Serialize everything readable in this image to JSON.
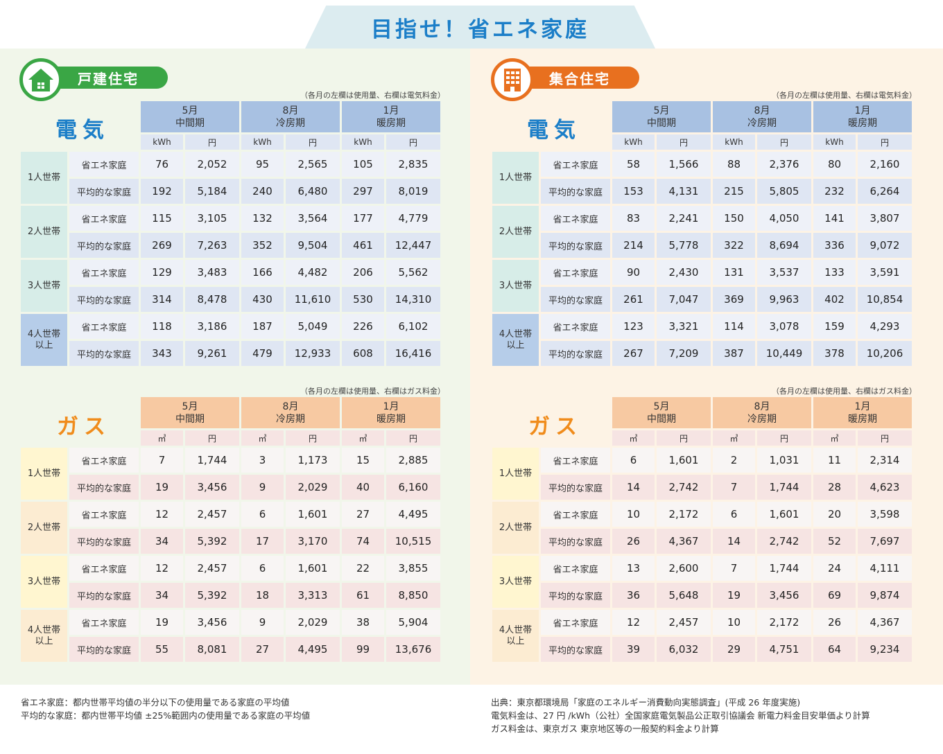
{
  "title": "目指せ！省エネ家庭",
  "colors": {
    "elec_header": "#a8c1e2",
    "elec_sub": "#dfe6f3",
    "gas_header": "#f7c9a2",
    "gas_sub": "#f6e4e3",
    "green": "#3aa645",
    "orange": "#e8701f",
    "blue_text": "#1b7ec8",
    "gas_text": "#f08c1c"
  },
  "left": {
    "title": "戸建住宅",
    "icon": "house-icon",
    "electric": {
      "label": "電気",
      "note": "（各月の左欄は使用量、右欄は電気料金）",
      "months": [
        {
          "month": "5月",
          "season": "中間期"
        },
        {
          "month": "8月",
          "season": "冷房期"
        },
        {
          "month": "1月",
          "season": "暖房期"
        }
      ],
      "units": [
        "kWh",
        "円",
        "kWh",
        "円",
        "kWh",
        "円"
      ],
      "groups": [
        {
          "label": "1人世帯",
          "rows": [
            {
              "label": "省エネ家庭",
              "values": [
                "76",
                "2,052",
                "95",
                "2,565",
                "105",
                "2,835"
              ]
            },
            {
              "label": "平均的な家庭",
              "values": [
                "192",
                "5,184",
                "240",
                "6,480",
                "297",
                "8,019"
              ]
            }
          ]
        },
        {
          "label": "2人世帯",
          "rows": [
            {
              "label": "省エネ家庭",
              "values": [
                "115",
                "3,105",
                "132",
                "3,564",
                "177",
                "4,779"
              ]
            },
            {
              "label": "平均的な家庭",
              "values": [
                "269",
                "7,263",
                "352",
                "9,504",
                "461",
                "12,447"
              ]
            }
          ]
        },
        {
          "label": "3人世帯",
          "rows": [
            {
              "label": "省エネ家庭",
              "values": [
                "129",
                "3,483",
                "166",
                "4,482",
                "206",
                "5,562"
              ]
            },
            {
              "label": "平均的な家庭",
              "values": [
                "314",
                "8,478",
                "430",
                "11,610",
                "530",
                "14,310"
              ]
            }
          ]
        },
        {
          "label": "4人世帯\n以上",
          "rows": [
            {
              "label": "省エネ家庭",
              "values": [
                "118",
                "3,186",
                "187",
                "5,049",
                "226",
                "6,102"
              ]
            },
            {
              "label": "平均的な家庭",
              "values": [
                "343",
                "9,261",
                "479",
                "12,933",
                "608",
                "16,416"
              ]
            }
          ]
        }
      ]
    },
    "gas": {
      "label": "ガス",
      "note": "（各月の左欄は使用量、右欄はガス料金）",
      "months": [
        {
          "month": "5月",
          "season": "中間期"
        },
        {
          "month": "8月",
          "season": "冷房期"
        },
        {
          "month": "1月",
          "season": "暖房期"
        }
      ],
      "units": [
        "㎥",
        "円",
        "㎥",
        "円",
        "㎥",
        "円"
      ],
      "groups": [
        {
          "label": "1人世帯",
          "rows": [
            {
              "label": "省エネ家庭",
              "values": [
                "7",
                "1,744",
                "3",
                "1,173",
                "15",
                "2,885"
              ]
            },
            {
              "label": "平均的な家庭",
              "values": [
                "19",
                "3,456",
                "9",
                "2,029",
                "40",
                "6,160"
              ]
            }
          ]
        },
        {
          "label": "2人世帯",
          "rows": [
            {
              "label": "省エネ家庭",
              "values": [
                "12",
                "2,457",
                "6",
                "1,601",
                "27",
                "4,495"
              ]
            },
            {
              "label": "平均的な家庭",
              "values": [
                "34",
                "5,392",
                "17",
                "3,170",
                "74",
                "10,515"
              ]
            }
          ]
        },
        {
          "label": "3人世帯",
          "rows": [
            {
              "label": "省エネ家庭",
              "values": [
                "12",
                "2,457",
                "6",
                "1,601",
                "22",
                "3,855"
              ]
            },
            {
              "label": "平均的な家庭",
              "values": [
                "34",
                "5,392",
                "18",
                "3,313",
                "61",
                "8,850"
              ]
            }
          ]
        },
        {
          "label": "4人世帯\n以上",
          "rows": [
            {
              "label": "省エネ家庭",
              "values": [
                "19",
                "3,456",
                "9",
                "2,029",
                "38",
                "5,904"
              ]
            },
            {
              "label": "平均的な家庭",
              "values": [
                "55",
                "8,081",
                "27",
                "4,495",
                "99",
                "13,676"
              ]
            }
          ]
        }
      ]
    }
  },
  "right": {
    "title": "集合住宅",
    "icon": "apartment-building-icon",
    "electric": {
      "label": "電気",
      "note": "（各月の左欄は使用量、右欄は電気料金）",
      "months": [
        {
          "month": "5月",
          "season": "中間期"
        },
        {
          "month": "8月",
          "season": "冷房期"
        },
        {
          "month": "1月",
          "season": "暖房期"
        }
      ],
      "units": [
        "kWh",
        "円",
        "kWh",
        "円",
        "kWh",
        "円"
      ],
      "groups": [
        {
          "label": "1人世帯",
          "rows": [
            {
              "label": "省エネ家庭",
              "values": [
                "58",
                "1,566",
                "88",
                "2,376",
                "80",
                "2,160"
              ]
            },
            {
              "label": "平均的な家庭",
              "values": [
                "153",
                "4,131",
                "215",
                "5,805",
                "232",
                "6,264"
              ]
            }
          ]
        },
        {
          "label": "2人世帯",
          "rows": [
            {
              "label": "省エネ家庭",
              "values": [
                "83",
                "2,241",
                "150",
                "4,050",
                "141",
                "3,807"
              ]
            },
            {
              "label": "平均的な家庭",
              "values": [
                "214",
                "5,778",
                "322",
                "8,694",
                "336",
                "9,072"
              ]
            }
          ]
        },
        {
          "label": "3人世帯",
          "rows": [
            {
              "label": "省エネ家庭",
              "values": [
                "90",
                "2,430",
                "131",
                "3,537",
                "133",
                "3,591"
              ]
            },
            {
              "label": "平均的な家庭",
              "values": [
                "261",
                "7,047",
                "369",
                "9,963",
                "402",
                "10,854"
              ]
            }
          ]
        },
        {
          "label": "4人世帯\n以上",
          "rows": [
            {
              "label": "省エネ家庭",
              "values": [
                "123",
                "3,321",
                "114",
                "3,078",
                "159",
                "4,293"
              ]
            },
            {
              "label": "平均的な家庭",
              "values": [
                "267",
                "7,209",
                "387",
                "10,449",
                "378",
                "10,206"
              ]
            }
          ]
        }
      ]
    },
    "gas": {
      "label": "ガス",
      "note": "（各月の左欄は使用量、右欄はガス料金）",
      "months": [
        {
          "month": "5月",
          "season": "中間期"
        },
        {
          "month": "8月",
          "season": "冷房期"
        },
        {
          "month": "1月",
          "season": "暖房期"
        }
      ],
      "units": [
        "㎥",
        "円",
        "㎥",
        "円",
        "㎥",
        "円"
      ],
      "groups": [
        {
          "label": "1人世帯",
          "rows": [
            {
              "label": "省エネ家庭",
              "values": [
                "6",
                "1,601",
                "2",
                "1,031",
                "11",
                "2,314"
              ]
            },
            {
              "label": "平均的な家庭",
              "values": [
                "14",
                "2,742",
                "7",
                "1,744",
                "28",
                "4,623"
              ]
            }
          ]
        },
        {
          "label": "2人世帯",
          "rows": [
            {
              "label": "省エネ家庭",
              "values": [
                "10",
                "2,172",
                "6",
                "1,601",
                "20",
                "3,598"
              ]
            },
            {
              "label": "平均的な家庭",
              "values": [
                "26",
                "4,367",
                "14",
                "2,742",
                "52",
                "7,697"
              ]
            }
          ]
        },
        {
          "label": "3人世帯",
          "rows": [
            {
              "label": "省エネ家庭",
              "values": [
                "13",
                "2,600",
                "7",
                "1,744",
                "24",
                "4,111"
              ]
            },
            {
              "label": "平均的な家庭",
              "values": [
                "36",
                "5,648",
                "19",
                "3,456",
                "69",
                "9,874"
              ]
            }
          ]
        },
        {
          "label": "4人世帯\n以上",
          "rows": [
            {
              "label": "省エネ家庭",
              "values": [
                "12",
                "2,457",
                "10",
                "2,172",
                "26",
                "4,367"
              ]
            },
            {
              "label": "平均的な家庭",
              "values": [
                "39",
                "6,032",
                "29",
                "4,751",
                "64",
                "9,234"
              ]
            }
          ]
        }
      ]
    }
  },
  "footer": {
    "left": [
      "省エネ家庭：都内世帯平均値の半分以下の使用量である家庭の平均値",
      "平均的な家庭：都内世帯平均値 ±25%範囲内の使用量である家庭の平均値"
    ],
    "right": [
      "出典：東京都環境局「家庭のエネルギー消費動向実態調査」(平成 26 年度実施)",
      "電気料金は、27 円 /kWh（公社）全国家庭電気製品公正取引協議会 新電力料金目安単価より計算",
      "ガス料金は、東京ガス 東京地区等の一般契約料金より計算"
    ]
  }
}
